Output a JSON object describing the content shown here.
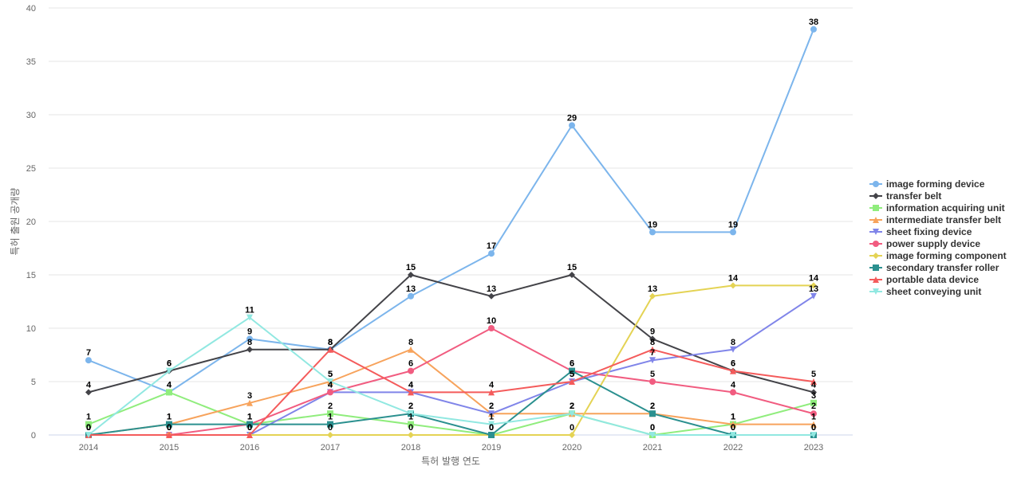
{
  "chart_data": {
    "type": "line",
    "title": "",
    "xlabel": "특허 발행 연도",
    "ylabel": "특허 출원 공개량",
    "ylim": [
      0,
      40
    ],
    "yticks": [
      0,
      5,
      10,
      15,
      20,
      25,
      30,
      35,
      40
    ],
    "grid": true,
    "legend_position": "right",
    "categories": [
      "2014",
      "2015",
      "2016",
      "2017",
      "2018",
      "2019",
      "2020",
      "2021",
      "2022",
      "2023"
    ],
    "series": [
      {
        "name": "image forming device",
        "color": "#7cb5ec",
        "marker": "circle",
        "values": [
          7,
          4,
          9,
          8,
          13,
          17,
          29,
          19,
          19,
          38
        ]
      },
      {
        "name": "transfer belt",
        "color": "#434348",
        "marker": "diamond",
        "values": [
          4,
          6,
          8,
          8,
          15,
          13,
          15,
          9,
          6,
          4
        ]
      },
      {
        "name": "information acquiring unit",
        "color": "#90ed7d",
        "marker": "square",
        "values": [
          1,
          4,
          1,
          2,
          1,
          0,
          2,
          0,
          1,
          3
        ]
      },
      {
        "name": "intermediate transfer belt",
        "color": "#f7a35c",
        "marker": "triangle",
        "values": [
          0,
          1,
          3,
          5,
          8,
          2,
          2,
          2,
          1,
          1
        ]
      },
      {
        "name": "sheet fixing device",
        "color": "#8085e9",
        "marker": "triangle-down",
        "values": [
          0,
          0,
          0,
          4,
          4,
          2,
          5,
          7,
          8,
          13
        ]
      },
      {
        "name": "power supply device",
        "color": "#f15c80",
        "marker": "circle",
        "values": [
          0,
          0,
          1,
          4,
          6,
          10,
          6,
          5,
          4,
          2
        ]
      },
      {
        "name": "image forming component",
        "color": "#e4d354",
        "marker": "diamond",
        "values": [
          0,
          0,
          0,
          0,
          0,
          0,
          0,
          13,
          14,
          14
        ]
      },
      {
        "name": "secondary transfer roller",
        "color": "#2b908f",
        "marker": "square",
        "values": [
          0,
          1,
          1,
          1,
          2,
          0,
          6,
          2,
          0,
          0
        ]
      },
      {
        "name": "portable data device",
        "color": "#f45b5b",
        "marker": "triangle",
        "values": [
          0,
          0,
          0,
          8,
          4,
          4,
          5,
          8,
          6,
          5
        ]
      },
      {
        "name": "sheet conveying unit",
        "color": "#91e8e1",
        "marker": "triangle-down",
        "values": [
          0,
          6,
          11,
          5,
          2,
          1,
          2,
          0,
          0,
          0
        ]
      }
    ]
  }
}
